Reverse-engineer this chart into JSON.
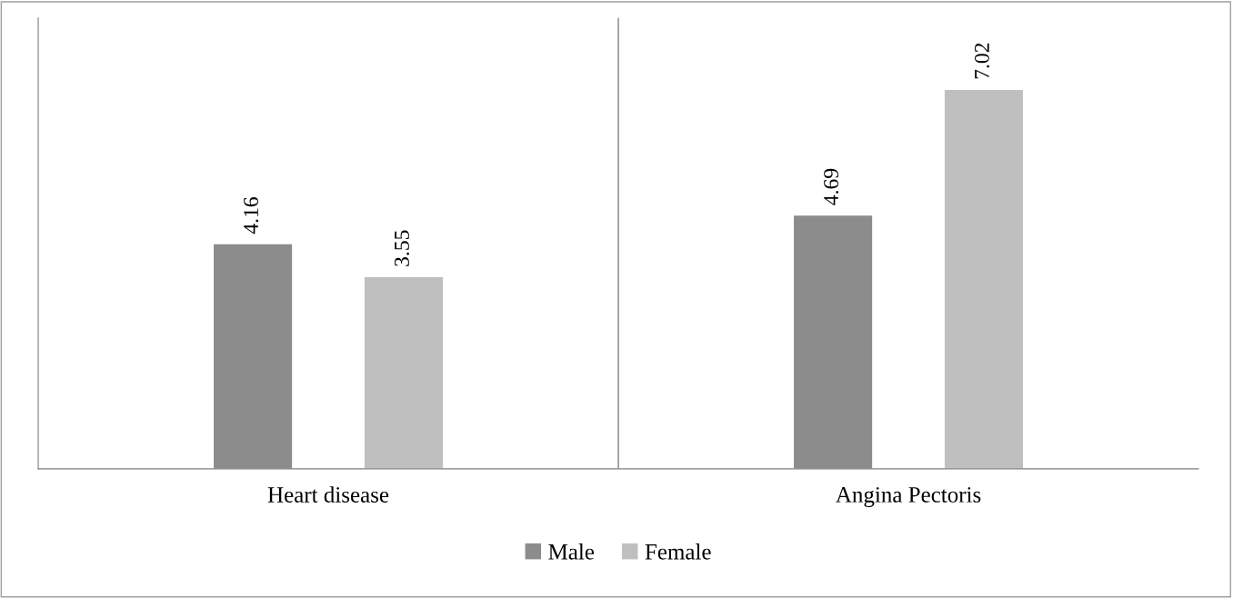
{
  "chart_data": {
    "type": "bar",
    "categories": [
      "Heart disease",
      "Angina Pectoris"
    ],
    "series": [
      {
        "name": "Male",
        "color": "#8c8c8c",
        "values": [
          4.16,
          4.69
        ]
      },
      {
        "name": "Female",
        "color": "#bfbfbf",
        "values": [
          3.55,
          7.02
        ]
      }
    ],
    "data_labels": true,
    "tick_labels": "x",
    "legend": "bottom",
    "grid": false
  }
}
